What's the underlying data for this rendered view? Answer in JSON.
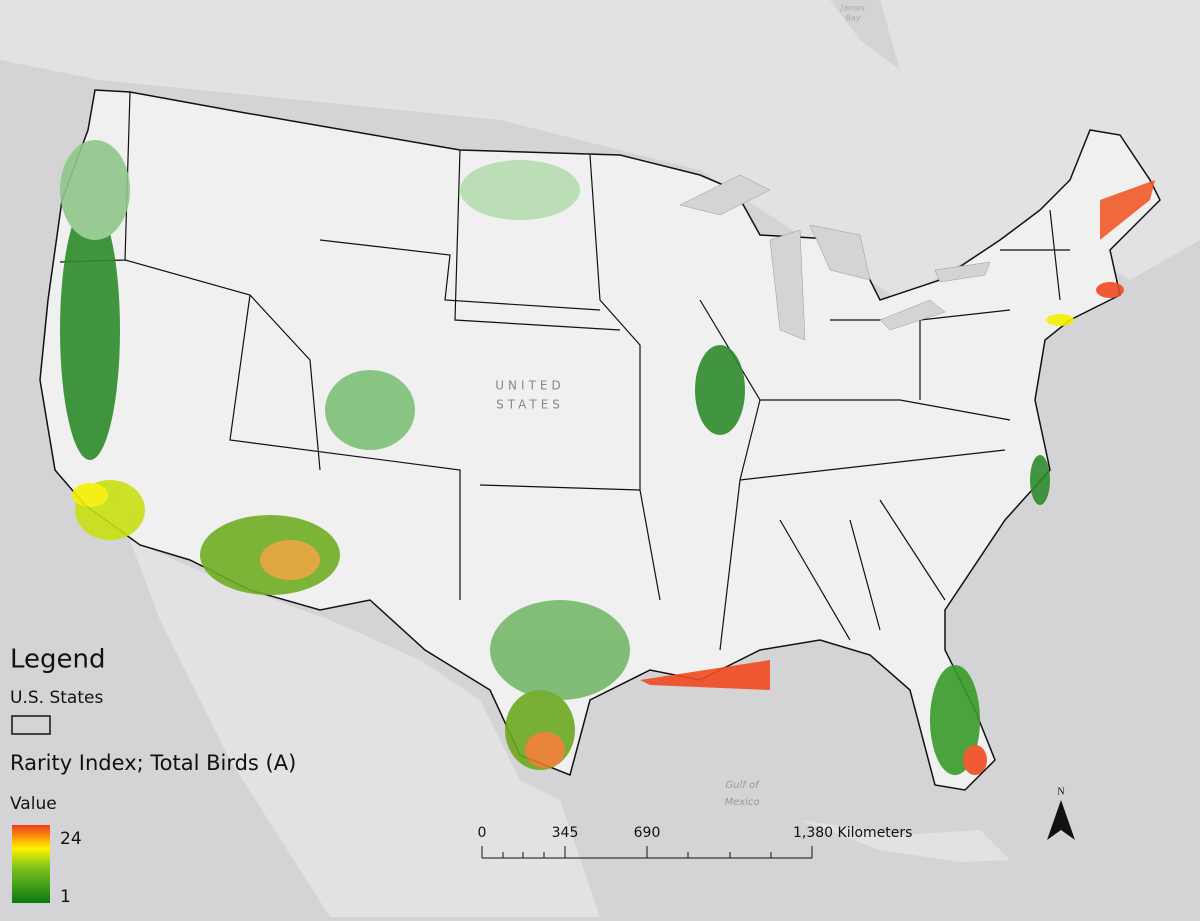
{
  "map": {
    "country_label": [
      "UNITED",
      "STATES"
    ],
    "water_labels": {
      "gulf": [
        "Gulf of",
        "Mexico"
      ],
      "bay": [
        "James",
        "Bay"
      ]
    },
    "legend": {
      "title": "Legend",
      "layer1": "U.S. States",
      "layer2": "Rarity Index; Total Birds (A)",
      "value_label": "Value",
      "high": "24",
      "low": "1"
    },
    "scale_bar": {
      "labels": [
        "0",
        "345",
        "690",
        "1,380 Kilometers"
      ]
    },
    "north": "N"
  }
}
